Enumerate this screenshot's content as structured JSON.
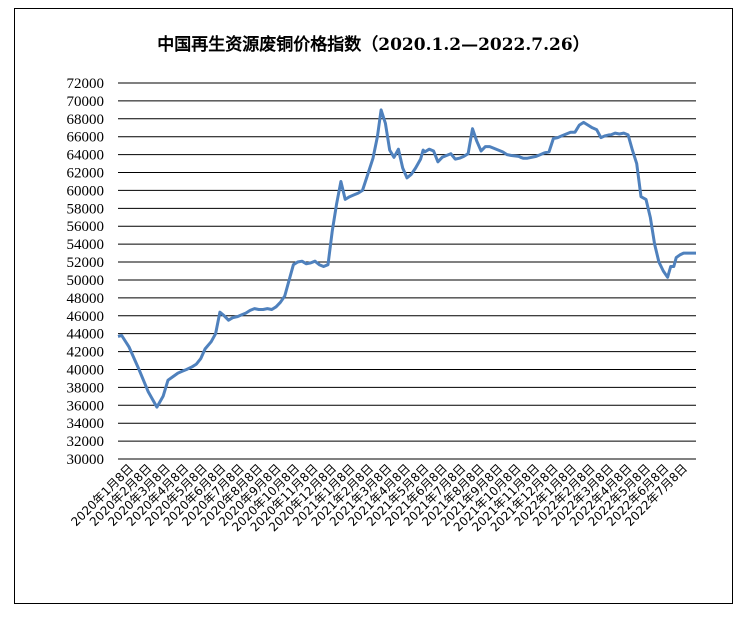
{
  "chart_data": {
    "type": "line",
    "title": "中国再生资源废铜价格指数（2020.1.2—2022.7.26）",
    "xlabel": "",
    "ylabel": "",
    "ylim": [
      30000,
      72000
    ],
    "y_ticks": [
      30000,
      32000,
      34000,
      36000,
      38000,
      40000,
      42000,
      44000,
      46000,
      48000,
      50000,
      52000,
      54000,
      56000,
      58000,
      60000,
      62000,
      64000,
      66000,
      68000,
      70000,
      72000
    ],
    "y_tick_labels": [
      "30000",
      "32000",
      "34000",
      "36000",
      "38000",
      "40000",
      "42000",
      "44000",
      "46000",
      "48000",
      "50000",
      "52000",
      "54000",
      "56000",
      "58000",
      "60000",
      "62000",
      "64000",
      "66000",
      "68000",
      "70000",
      "72000"
    ],
    "x_tick_labels": [
      "2020年1月8日",
      "2020年2月8日",
      "2020年3月8日",
      "2020年4月8日",
      "2020年5月8日",
      "2020年6月8日",
      "2020年7月8日",
      "2020年8月8日",
      "2020年9月8日",
      "2020年10月8日",
      "2020年11月8日",
      "2020年12月8日",
      "2021年1月8日",
      "2021年2月8日",
      "2021年3月8日",
      "2021年4月8日",
      "2021年5月8日",
      "2021年6月8日",
      "2021年7月8日",
      "2021年8月8日",
      "2021年9月8日",
      "2021年10月8日",
      "2021年11月8日",
      "2021年12月8日",
      "2022年1月8日",
      "2022年2月8日",
      "2022年3月8日",
      "2022年4月8日",
      "2022年5月8日",
      "2022年6月8日",
      "2022年7月8日"
    ],
    "grid": true,
    "legend": "none",
    "series": [
      {
        "color": "#4f81bd",
        "x": [
          "2020-01-02",
          "2020-01-08",
          "2020-01-20",
          "2020-02-05",
          "2020-02-20",
          "2020-03-05",
          "2020-03-15",
          "2020-03-23",
          "2020-03-31",
          "2020-04-08",
          "2020-04-15",
          "2020-04-22",
          "2020-05-01",
          "2020-05-08",
          "2020-05-15",
          "2020-05-22",
          "2020-06-01",
          "2020-06-08",
          "2020-06-15",
          "2020-06-22",
          "2020-06-29",
          "2020-07-06",
          "2020-07-13",
          "2020-07-20",
          "2020-07-27",
          "2020-08-03",
          "2020-08-10",
          "2020-08-17",
          "2020-08-24",
          "2020-08-31",
          "2020-09-07",
          "2020-09-14",
          "2020-09-21",
          "2020-09-28",
          "2020-10-12",
          "2020-10-19",
          "2020-10-26",
          "2020-11-02",
          "2020-11-09",
          "2020-11-16",
          "2020-11-23",
          "2020-11-30",
          "2020-12-07",
          "2020-12-14",
          "2020-12-21",
          "2020-12-28",
          "2021-01-04",
          "2021-01-11",
          "2021-01-18",
          "2021-01-25",
          "2021-02-01",
          "2021-02-08",
          "2021-02-18",
          "2021-02-25",
          "2021-03-03",
          "2021-03-10",
          "2021-03-17",
          "2021-03-24",
          "2021-03-31",
          "2021-04-07",
          "2021-04-14",
          "2021-04-21",
          "2021-04-28",
          "2021-05-06",
          "2021-05-10",
          "2021-05-13",
          "2021-05-20",
          "2021-05-27",
          "2021-06-03",
          "2021-06-10",
          "2021-06-17",
          "2021-06-24",
          "2021-07-01",
          "2021-07-08",
          "2021-07-15",
          "2021-07-22",
          "2021-07-29",
          "2021-08-05",
          "2021-08-12",
          "2021-08-19",
          "2021-08-26",
          "2021-09-02",
          "2021-09-09",
          "2021-09-16",
          "2021-09-23",
          "2021-09-30",
          "2021-10-12",
          "2021-10-15",
          "2021-10-19",
          "2021-10-26",
          "2021-11-02",
          "2021-11-09",
          "2021-11-16",
          "2021-11-23",
          "2021-11-30",
          "2021-12-07",
          "2021-12-14",
          "2021-12-21",
          "2021-12-28",
          "2022-01-04",
          "2022-01-11",
          "2022-01-18",
          "2022-01-25",
          "2022-02-08",
          "2022-02-15",
          "2022-02-22",
          "2022-03-01",
          "2022-03-07",
          "2022-03-10",
          "2022-03-17",
          "2022-03-24",
          "2022-03-31",
          "2022-04-07",
          "2022-04-14",
          "2022-04-21",
          "2022-04-28",
          "2022-05-06",
          "2022-05-13",
          "2022-05-20",
          "2022-05-27",
          "2022-06-03",
          "2022-06-10",
          "2022-06-15",
          "2022-06-20",
          "2022-06-24",
          "2022-06-30",
          "2022-07-06",
          "2022-07-12",
          "2022-07-15",
          "2022-07-20",
          "2022-07-26"
        ],
        "values": [
          43700,
          43800,
          42500,
          40000,
          37500,
          35800,
          37000,
          38800,
          39200,
          39600,
          39800,
          40000,
          40300,
          40600,
          41200,
          42300,
          43100,
          44000,
          46400,
          46000,
          45500,
          45800,
          45900,
          46100,
          46300,
          46600,
          46800,
          46700,
          46700,
          46800,
          46700,
          47000,
          47500,
          48200,
          51700,
          52000,
          52100,
          51800,
          51900,
          52100,
          51700,
          51500,
          51700,
          55500,
          58500,
          61000,
          59000,
          59300,
          59500,
          59700,
          60000,
          61500,
          63600,
          66000,
          69000,
          67500,
          64500,
          63700,
          64600,
          62500,
          61400,
          61800,
          62500,
          63500,
          64500,
          64300,
          64600,
          64400,
          63200,
          63700,
          63900,
          64100,
          63500,
          63600,
          63800,
          64100,
          66900,
          65500,
          64400,
          64900,
          64900,
          64700,
          64500,
          64300,
          64000,
          63900,
          63800,
          63700,
          63600,
          63600,
          63700,
          63800,
          64000,
          64200,
          64300,
          65800,
          65900,
          66100,
          66300,
          66500,
          66500,
          67300,
          67600,
          67000,
          66800,
          65900,
          66100,
          66200,
          66200,
          66400,
          66300,
          66400,
          66200,
          64500,
          63000,
          59300,
          59000,
          57000,
          54000,
          52000,
          51000,
          50300,
          51500,
          51500,
          52500,
          52800,
          53000,
          53000,
          53000,
          53000,
          53000
        ],
        "x_raw_note": ""
      }
    ]
  }
}
